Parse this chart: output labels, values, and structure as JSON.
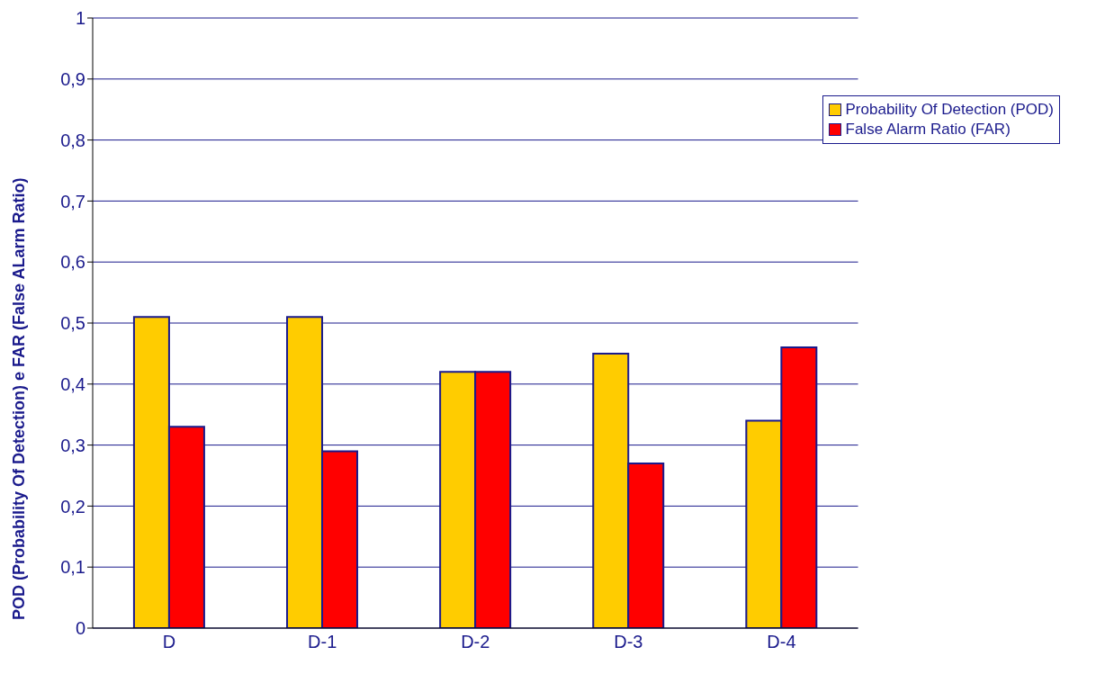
{
  "chart_data": {
    "type": "bar",
    "ylabel": "POD (Probability Of Detection) e FAR (False ALarm Ratio)",
    "categories": [
      "D",
      "D-1",
      "D-2",
      "D-3",
      "D-4"
    ],
    "series": [
      {
        "name": "Probability Of Detection (POD)",
        "color": "#ffcc00",
        "values": [
          0.51,
          0.51,
          0.42,
          0.45,
          0.34
        ]
      },
      {
        "name": "False Alarm Ratio (FAR)",
        "color": "#ff0000",
        "values": [
          0.33,
          0.29,
          0.42,
          0.27,
          0.46
        ]
      }
    ],
    "ylim": [
      0,
      1
    ],
    "yticks": [
      0,
      {
        "value": 0.1,
        "label": "0,1"
      },
      {
        "value": 0.2,
        "label": "0,2"
      },
      {
        "value": 0.3,
        "label": "0,3"
      },
      {
        "value": 0.4,
        "label": "0,4"
      },
      {
        "value": 0.5,
        "label": "0,5"
      },
      {
        "value": 0.6,
        "label": "0,6"
      },
      {
        "value": 0.7,
        "label": "0,7"
      },
      {
        "value": 0.8,
        "label": "0,8"
      },
      {
        "value": 0.9,
        "label": "0,9"
      },
      1
    ],
    "grid": "y",
    "legend": "top right"
  }
}
